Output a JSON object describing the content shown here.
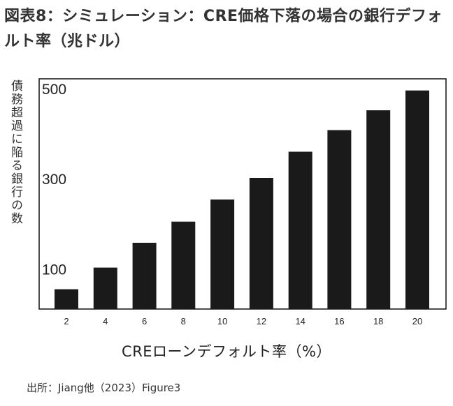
{
  "title": "図表8：シミュレーション：CRE価格下落の場合の銀行デフォルト率（兆ドル）",
  "source": "出所：Jiang他（2023）Figure3",
  "chart_data": {
    "type": "bar",
    "title": "図表8：シミュレーション：CRE価格下落の場合の銀行デフォルト率（兆ドル）",
    "xlabel": "CREローンデフォルト率（%）",
    "ylabel": "債務超過に陥る銀行の数",
    "categories": [
      "2",
      "4",
      "6",
      "8",
      "10",
      "12",
      "14",
      "16",
      "18",
      "20"
    ],
    "values": [
      44,
      92,
      147,
      194,
      243,
      291,
      349,
      397,
      441,
      485
    ],
    "ylim": [
      0,
      500
    ],
    "yticks": [
      100,
      300,
      500
    ],
    "grid": false,
    "legend": "none",
    "bar_color": "#1a1a1a"
  }
}
